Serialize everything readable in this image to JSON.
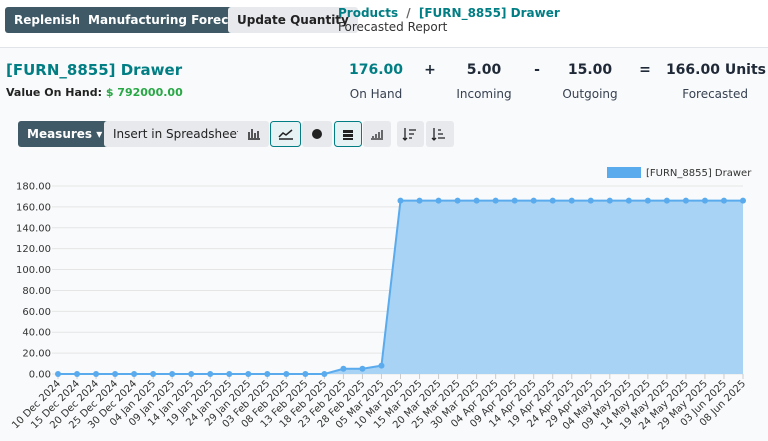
{
  "buttons": [
    "Replenish",
    "Manufacturing Forecast",
    "Update Quantity"
  ],
  "breadcrumb": {
    "parent": "Products",
    "separator": "/",
    "current": "[FURN_8855] Drawer",
    "subtitle": "Forecasted Report"
  },
  "product": {
    "name": "[FURN_8855] Drawer",
    "value_label": "Value On Hand:",
    "value": "$ 792000.00"
  },
  "summary": {
    "items": [
      {
        "value": "176.00",
        "label": "On Hand"
      },
      {
        "value": "5.00",
        "label": "Incoming"
      },
      {
        "value": "15.00",
        "label": "Outgoing"
      },
      {
        "value": "166.00 Units",
        "label": "Forecasted"
      }
    ],
    "operators": [
      "+",
      "-",
      "="
    ]
  },
  "toolbar": {
    "measures": "Measures",
    "spreadsheet": "Insert in Spreadsheet"
  },
  "chart_data": {
    "type": "area",
    "categories": [
      "10 Dec 2024",
      "15 Dec 2024",
      "20 Dec 2024",
      "25 Dec 2024",
      "30 Dec 2024",
      "04 Jan 2025",
      "09 Jan 2025",
      "14 Jan 2025",
      "19 Jan 2025",
      "24 Jan 2025",
      "29 Jan 2025",
      "03 Feb 2025",
      "08 Feb 2025",
      "13 Feb 2025",
      "18 Feb 2025",
      "23 Feb 2025",
      "28 Feb 2025",
      "05 Mar 2025",
      "10 Mar 2025",
      "15 Mar 2025",
      "20 Mar 2025",
      "25 Mar 2025",
      "30 Mar 2025",
      "04 Apr 2025",
      "09 Apr 2025",
      "14 Apr 2025",
      "19 Apr 2025",
      "24 Apr 2025",
      "29 Apr 2025",
      "04 May 2025",
      "09 May 2025",
      "14 May 2025",
      "19 May 2025",
      "24 May 2025",
      "29 May 2025",
      "03 Jun 2025",
      "08 Jun 2025"
    ],
    "series": [
      {
        "name": "[FURN_8855] Drawer",
        "color": "#5aabee",
        "fill": "#a8d3f4",
        "values": [
          0,
          0,
          0,
          0,
          0,
          0,
          0,
          0,
          0,
          0,
          0,
          0,
          0,
          0,
          0,
          5,
          5,
          8,
          166,
          166,
          166,
          166,
          166,
          166,
          166,
          166,
          166,
          166,
          166,
          166,
          166,
          166,
          166,
          166,
          166,
          166,
          166
        ]
      }
    ],
    "ylim": [
      0,
      180
    ],
    "yticks": [
      {
        "value": 0,
        "label": "0.00"
      },
      {
        "value": 20,
        "label": "20.00"
      },
      {
        "value": 40,
        "label": "40.00"
      },
      {
        "value": 60,
        "label": "60.00"
      },
      {
        "value": 80,
        "label": "80.00"
      },
      {
        "value": 100,
        "label": "100.00"
      },
      {
        "value": 120,
        "label": "120.00"
      },
      {
        "value": 140,
        "label": "140.00"
      },
      {
        "value": 160,
        "label": "160.00"
      },
      {
        "value": 180,
        "label": "180.00"
      }
    ],
    "grid": true,
    "legend": "top-right"
  }
}
